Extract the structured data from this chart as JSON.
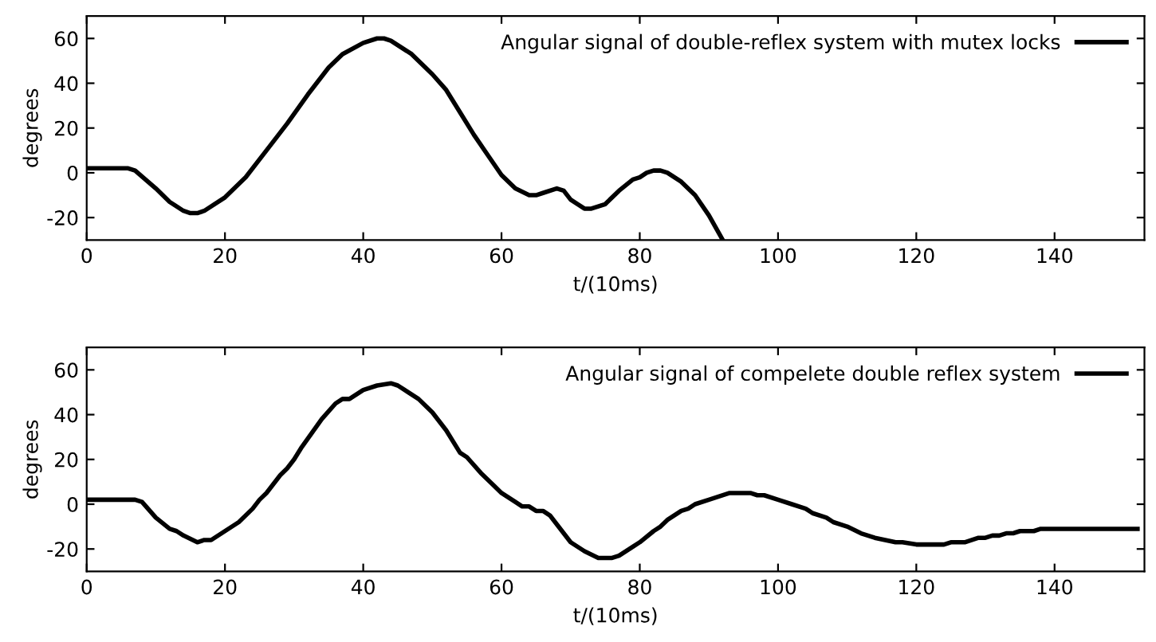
{
  "chart_data": [
    {
      "type": "line",
      "xlabel": "t/(10ms)",
      "ylabel": "degrees",
      "xlim": [
        0,
        153
      ],
      "ylim": [
        -30,
        70
      ],
      "xticks": [
        0,
        20,
        40,
        60,
        80,
        100,
        120,
        140
      ],
      "yticks": [
        -20,
        0,
        20,
        40,
        60
      ],
      "grid": false,
      "legend": "top right",
      "series": [
        {
          "name": "Angular signal of double-reflex system with mutex locks",
          "color": "#000000",
          "x": [
            0,
            6,
            7,
            10,
            12,
            14,
            15,
            16,
            17,
            20,
            23,
            26,
            29,
            32,
            35,
            37,
            40,
            42,
            43,
            44,
            47,
            50,
            52,
            54,
            56,
            58,
            60,
            62,
            64,
            65,
            66,
            68,
            69,
            70,
            72,
            73,
            74,
            75,
            77,
            79,
            80,
            81,
            82,
            83,
            84,
            86,
            88,
            90,
            92
          ],
          "values": [
            2,
            2,
            1,
            -7,
            -13,
            -17,
            -18,
            -18,
            -17,
            -11,
            -2,
            10,
            22,
            35,
            47,
            53,
            58,
            60,
            60,
            59,
            53,
            44,
            37,
            27,
            17,
            8,
            -1,
            -7,
            -10,
            -10,
            -9,
            -7,
            -8,
            -12,
            -16,
            -16,
            -15,
            -14,
            -8,
            -3,
            -2,
            0,
            1,
            1,
            0,
            -4,
            -10,
            -19,
            -30
          ]
        }
      ]
    },
    {
      "type": "line",
      "xlabel": "t/(10ms)",
      "ylabel": "degrees",
      "xlim": [
        0,
        153
      ],
      "ylim": [
        -30,
        70
      ],
      "xticks": [
        0,
        20,
        40,
        60,
        80,
        100,
        120,
        140
      ],
      "yticks": [
        -20,
        0,
        20,
        40,
        60
      ],
      "grid": false,
      "legend": "top right",
      "series": [
        {
          "name": "Angular signal of compelete double reflex system",
          "color": "#000000",
          "x": [
            0,
            7,
            8,
            10,
            12,
            13,
            14,
            16,
            17,
            18,
            20,
            22,
            24,
            25,
            26,
            28,
            29,
            30,
            31,
            34,
            36,
            37,
            38,
            40,
            42,
            44,
            45,
            48,
            50,
            52,
            54,
            55,
            57,
            59,
            60,
            62,
            63,
            64,
            65,
            66,
            67,
            69,
            70,
            72,
            74,
            76,
            77,
            79,
            80,
            82,
            83,
            84,
            86,
            87,
            88,
            90,
            93,
            96,
            97,
            98,
            100,
            102,
            104,
            105,
            107,
            108,
            110,
            112,
            114,
            117,
            118,
            120,
            124,
            125,
            127,
            129,
            130,
            131,
            132,
            133,
            134,
            135,
            137,
            138,
            152
          ],
          "values": [
            2,
            2,
            1,
            -6,
            -11,
            -12,
            -14,
            -17,
            -16,
            -16,
            -12,
            -8,
            -2,
            2,
            5,
            13,
            16,
            20,
            25,
            38,
            45,
            47,
            47,
            51,
            53,
            54,
            53,
            47,
            41,
            33,
            23,
            21,
            14,
            8,
            5,
            1,
            -1,
            -1,
            -3,
            -3,
            -5,
            -13,
            -17,
            -21,
            -24,
            -24,
            -23,
            -19,
            -17,
            -12,
            -10,
            -7,
            -3,
            -2,
            0,
            2,
            5,
            5,
            4,
            4,
            2,
            0,
            -2,
            -4,
            -6,
            -8,
            -10,
            -13,
            -15,
            -17,
            -17,
            -18,
            -18,
            -17,
            -17,
            -15,
            -15,
            -14,
            -14,
            -13,
            -13,
            -12,
            -12,
            -11,
            -11
          ]
        }
      ]
    }
  ]
}
